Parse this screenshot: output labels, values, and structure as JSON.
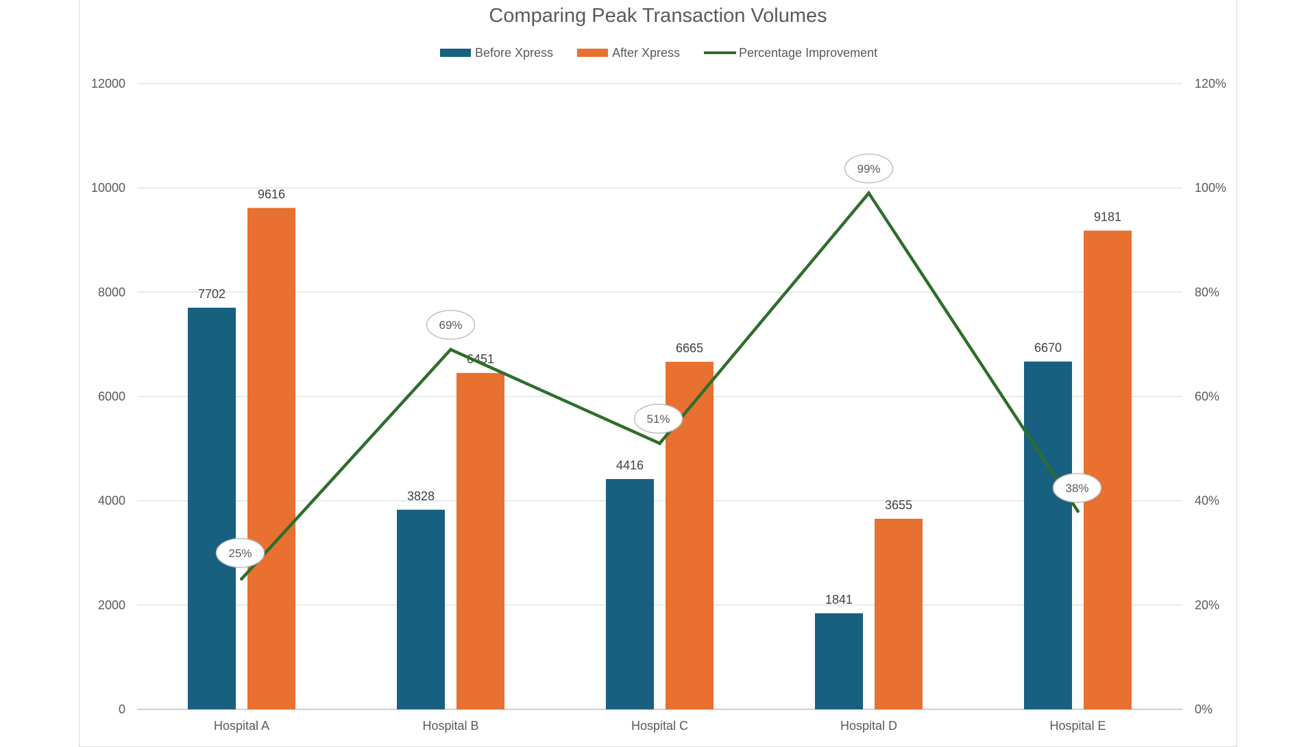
{
  "chart_data": {
    "type": "bar",
    "title": "Comparing Peak Transaction Volumes",
    "categories": [
      "Hospital A",
      "Hospital B",
      "Hospital C",
      "Hospital D",
      "Hospital E"
    ],
    "series": [
      {
        "name": "Before Xpress",
        "type": "bar",
        "axis": "left",
        "color": "#17607f",
        "values": [
          7702,
          3828,
          4416,
          1841,
          6670
        ]
      },
      {
        "name": "After Xpress",
        "type": "bar",
        "axis": "left",
        "color": "#e87030",
        "values": [
          9616,
          6451,
          6665,
          3655,
          9181
        ]
      },
      {
        "name": "Percentage Improvement",
        "type": "line",
        "axis": "right",
        "color": "#2e6e2b",
        "values": [
          25,
          69,
          51,
          99,
          38
        ],
        "labels": [
          "25%",
          "69%",
          "51%",
          "99%",
          "38%"
        ]
      }
    ],
    "ylim": [
      0,
      12000
    ],
    "y_ticks": [
      "0",
      "2000",
      "4000",
      "6000",
      "8000",
      "10000",
      "12000"
    ],
    "y2lim": [
      0,
      120
    ],
    "y2_ticks": [
      "0%",
      "20%",
      "40%",
      "60%",
      "80%",
      "100%",
      "120%"
    ],
    "grid": true,
    "legend_position": "top"
  }
}
